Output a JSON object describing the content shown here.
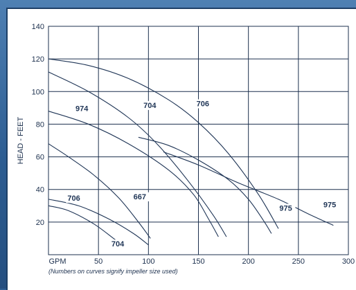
{
  "colors": {
    "frame": "#2f5f93",
    "panel": "#ffffff",
    "ink": "#1f3556"
  },
  "chart_data": {
    "type": "line",
    "ylabel": "HEAD - FEET",
    "x_tick_prefix": "GPM",
    "xlim": [
      0,
      300
    ],
    "ylim": [
      0,
      140
    ],
    "x_ticks": [
      50,
      100,
      150,
      200,
      250,
      300
    ],
    "y_ticks": [
      20,
      40,
      60,
      80,
      100,
      120,
      140
    ],
    "grid": true,
    "note": "(Numbers on curves signify impeller size used)",
    "series": [
      {
        "name": "706",
        "label_at": [
          148,
          91
        ],
        "points": [
          [
            0,
            120
          ],
          [
            40,
            116
          ],
          [
            80,
            108
          ],
          [
            120,
            95
          ],
          [
            150,
            81
          ],
          [
            180,
            62
          ],
          [
            210,
            37
          ],
          [
            230,
            16
          ]
        ]
      },
      {
        "name": "704",
        "label_at": [
          95,
          90
        ],
        "points": [
          [
            0,
            112
          ],
          [
            40,
            100
          ],
          [
            80,
            84
          ],
          [
            110,
            67
          ],
          [
            140,
            45
          ],
          [
            165,
            24
          ],
          [
            178,
            11
          ]
        ]
      },
      {
        "name": "974",
        "label_at": [
          27,
          88
        ],
        "points": [
          [
            0,
            88
          ],
          [
            40,
            80
          ],
          [
            80,
            68
          ],
          [
            120,
            52
          ],
          [
            145,
            37
          ],
          [
            160,
            22
          ],
          [
            170,
            11
          ]
        ]
      },
      {
        "name": "975",
        "label_at": [
          231,
          27
        ],
        "points": [
          [
            90,
            72
          ],
          [
            120,
            67
          ],
          [
            150,
            58
          ],
          [
            180,
            46
          ],
          [
            200,
            34
          ],
          [
            215,
            21
          ],
          [
            223,
            13
          ]
        ]
      },
      {
        "name": "975",
        "label_at": [
          275,
          29
        ],
        "points": [
          [
            115,
            63
          ],
          [
            150,
            55
          ],
          [
            190,
            44
          ],
          [
            230,
            34
          ],
          [
            260,
            25
          ],
          [
            285,
            18
          ]
        ]
      },
      {
        "name": "667",
        "label_at": [
          85,
          34
        ],
        "points": [
          [
            0,
            68
          ],
          [
            20,
            60
          ],
          [
            45,
            49
          ],
          [
            70,
            35
          ],
          [
            90,
            20
          ],
          [
            102,
            10
          ]
        ]
      },
      {
        "name": "706",
        "label_at": [
          19,
          33
        ],
        "points": [
          [
            0,
            34
          ],
          [
            30,
            30
          ],
          [
            60,
            22
          ],
          [
            85,
            13
          ],
          [
            100,
            6
          ]
        ]
      },
      {
        "name": "704",
        "label_at": [
          63,
          5
        ],
        "points": [
          [
            0,
            30
          ],
          [
            20,
            27
          ],
          [
            45,
            19
          ],
          [
            65,
            10
          ],
          [
            78,
            4
          ]
        ]
      }
    ]
  }
}
